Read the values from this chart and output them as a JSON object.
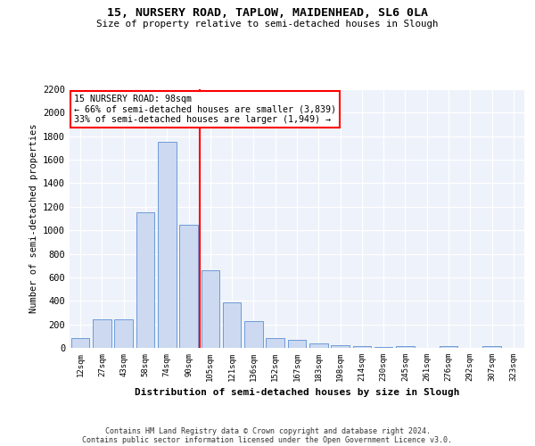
{
  "title_line1": "15, NURSERY ROAD, TAPLOW, MAIDENHEAD, SL6 0LA",
  "title_line2": "Size of property relative to semi-detached houses in Slough",
  "xlabel": "Distribution of semi-detached houses by size in Slough",
  "ylabel": "Number of semi-detached properties",
  "bar_labels": [
    "12sqm",
    "27sqm",
    "43sqm",
    "58sqm",
    "74sqm",
    "90sqm",
    "105sqm",
    "121sqm",
    "136sqm",
    "152sqm",
    "167sqm",
    "183sqm",
    "198sqm",
    "214sqm",
    "230sqm",
    "245sqm",
    "261sqm",
    "276sqm",
    "292sqm",
    "307sqm",
    "323sqm"
  ],
  "bar_values": [
    80,
    240,
    240,
    1150,
    1750,
    1050,
    660,
    390,
    230,
    80,
    70,
    35,
    20,
    15,
    10,
    15,
    0,
    15,
    0,
    15,
    0
  ],
  "bar_color": "#ccd9f0",
  "bar_edge_color": "#5b8fd4",
  "vline_x": 5.5,
  "annotation_text": "15 NURSERY ROAD: 98sqm\n← 66% of semi-detached houses are smaller (3,839)\n33% of semi-detached houses are larger (1,949) →",
  "annotation_box_color": "white",
  "annotation_box_edge": "red",
  "vline_color": "red",
  "ylim": [
    0,
    2200
  ],
  "yticks": [
    0,
    200,
    400,
    600,
    800,
    1000,
    1200,
    1400,
    1600,
    1800,
    2000,
    2200
  ],
  "footnote_line1": "Contains HM Land Registry data © Crown copyright and database right 2024.",
  "footnote_line2": "Contains public sector information licensed under the Open Government Licence v3.0.",
  "bg_color": "#eef2fa",
  "grid_color": "white"
}
